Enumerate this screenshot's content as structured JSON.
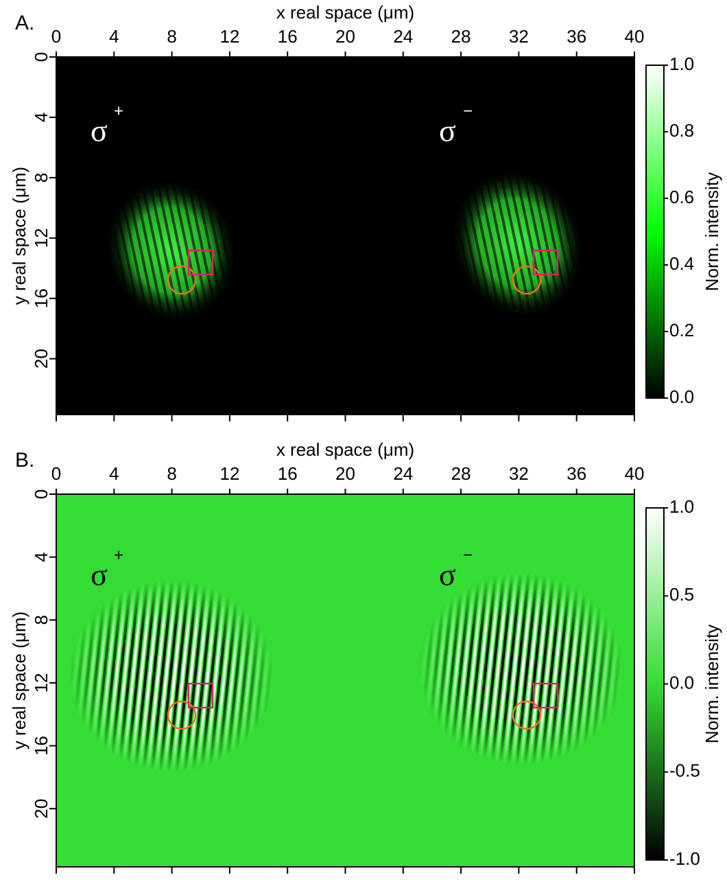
{
  "chart_data": [
    {
      "type": "heatmap",
      "panel": "A.",
      "xlabel": "x real space (μm)",
      "ylabel": "y real space (μm)",
      "xlim": [
        0,
        40
      ],
      "xticks": [
        0,
        4,
        8,
        12,
        16,
        20,
        24,
        28,
        32,
        36,
        40
      ],
      "ylim": [
        0,
        23.7
      ],
      "yticks": [
        0,
        4,
        8,
        12,
        16,
        20
      ],
      "annotations": [
        {
          "text": "σ",
          "sup": "+"
        },
        {
          "text": "σ",
          "sup": "−"
        }
      ],
      "colorbar": {
        "label": "Norm. intensity",
        "lim": [
          0,
          1
        ],
        "ticks": [
          {
            "value": 0,
            "label": "0.0"
          },
          0.2,
          0.4,
          0.6,
          0.8,
          {
            "value": 1,
            "label": "1.0"
          }
        ],
        "colors": [
          "#000000",
          "#00ff00",
          "#ffffff"
        ]
      }
    },
    {
      "type": "heatmap",
      "panel": "B.",
      "xlabel": "x real space (μm)",
      "ylabel": "y real space (μm)",
      "xlim": [
        0,
        40
      ],
      "xticks": [
        0,
        4,
        8,
        12,
        16,
        20,
        24,
        28,
        32,
        36,
        40
      ],
      "ylim": [
        0,
        23.7
      ],
      "yticks": [
        0,
        4,
        8,
        12,
        16,
        20
      ],
      "annotations": [
        {
          "text": "σ",
          "sup": "+"
        },
        {
          "text": "σ",
          "sup": "−"
        }
      ],
      "colorbar": {
        "label": "Norm. intensity",
        "lim": [
          -1,
          1
        ],
        "ticks": [
          {
            "value": -1,
            "label": "-1.0"
          },
          -0.5,
          {
            "value": 0,
            "label": "0.0"
          },
          0.5,
          {
            "value": 1,
            "label": "1.0"
          }
        ],
        "colors": [
          "#000000",
          "#33dd33",
          "#ffffff"
        ]
      }
    }
  ]
}
